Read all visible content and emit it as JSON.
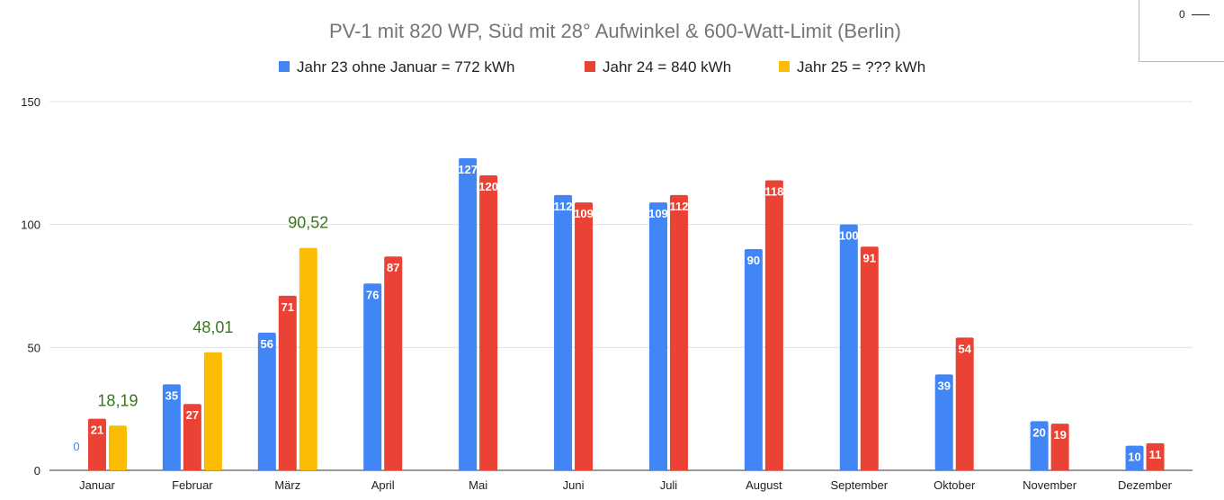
{
  "chart_data": {
    "type": "bar",
    "title": "PV-1 mit 820 WP, Süd mit 28° Aufwinkel & 600-Watt-Limit (Berlin)",
    "categories": [
      "Januar",
      "Februar",
      "März",
      "April",
      "Mai",
      "Juni",
      "Juli",
      "August",
      "September",
      "Oktober",
      "November",
      "Dezember"
    ],
    "series": [
      {
        "name": "Jahr 23 ohne Januar = 772 kWh",
        "color": "#4285f4",
        "values": [
          0,
          35,
          56,
          76,
          127,
          112,
          109,
          90,
          100,
          39,
          20,
          10
        ],
        "labels": [
          "0",
          "35",
          "56",
          "76",
          "127",
          "112",
          "109",
          "90",
          "100",
          "39",
          "20",
          "10"
        ]
      },
      {
        "name": "Jahr 24 = 840 kWh",
        "color": "#ea4335",
        "values": [
          21,
          27,
          71,
          87,
          120,
          109,
          112,
          118,
          91,
          54,
          19,
          11
        ],
        "labels": [
          "21",
          "27",
          "71",
          "87",
          "120",
          "109",
          "112",
          "118",
          "91",
          "54",
          "19",
          "11"
        ]
      },
      {
        "name": "Jahr 25 = ??? kWh",
        "color": "#fbbc04",
        "values": [
          18.19,
          48.01,
          90.52,
          null,
          null,
          null,
          null,
          null,
          null,
          null,
          null,
          null
        ],
        "labels": [
          "18,19",
          "48,01",
          "90,52",
          null,
          null,
          null,
          null,
          null,
          null,
          null,
          null,
          null
        ],
        "label_color": "#38761d"
      }
    ],
    "ylim": [
      0,
      150
    ],
    "yticks": [
      "0",
      "50",
      "100",
      "150"
    ],
    "grid": true,
    "legend": "top"
  },
  "corner_legend": {
    "text": "0"
  }
}
